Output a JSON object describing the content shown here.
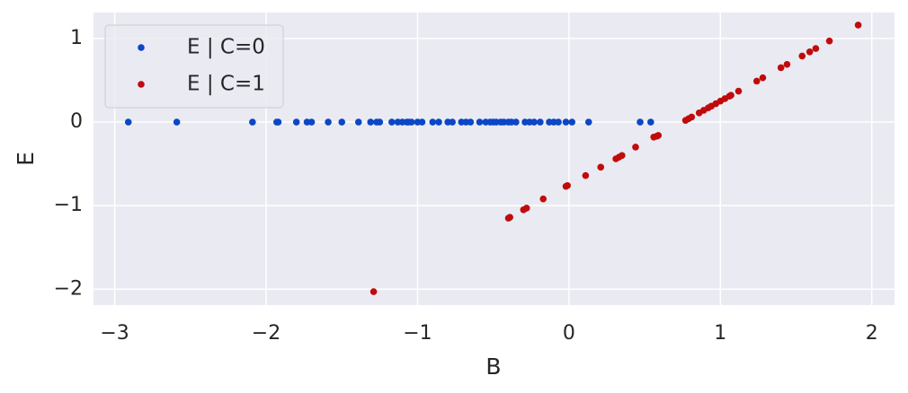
{
  "chart_data": {
    "type": "scatter",
    "xlabel": "B",
    "ylabel": "E",
    "xlim": [
      -3.14,
      2.15
    ],
    "ylim": [
      -2.19,
      1.31
    ],
    "xticks": [
      {
        "value": -3,
        "label": "−3"
      },
      {
        "value": -2,
        "label": "−2"
      },
      {
        "value": -1,
        "label": "−1"
      },
      0,
      1,
      2
    ],
    "yticks": [
      {
        "value": -2,
        "label": "−2"
      },
      {
        "value": -1,
        "label": "−1"
      },
      0,
      1
    ],
    "grid": true,
    "legend": "upper left",
    "series": [
      {
        "name": "E | C=0",
        "color": "#0b47c6",
        "x": [
          -2.91,
          -2.59,
          -2.09,
          -1.93,
          -1.92,
          -1.8,
          -1.73,
          -1.7,
          -1.59,
          -1.5,
          -1.39,
          -1.31,
          -1.27,
          -1.25,
          -1.17,
          -1.13,
          -1.1,
          -1.07,
          -1.06,
          -1.04,
          -1.0,
          -0.97,
          -0.9,
          -0.86,
          -0.8,
          -0.77,
          -0.71,
          -0.68,
          -0.65,
          -0.59,
          -0.55,
          -0.52,
          -0.5,
          -0.48,
          -0.45,
          -0.43,
          -0.4,
          -0.38,
          -0.35,
          -0.29,
          -0.26,
          -0.23,
          -0.19,
          -0.13,
          -0.1,
          -0.07,
          -0.02,
          0.02,
          0.13,
          0.47,
          0.54
        ],
        "y": [
          0,
          0,
          0,
          0,
          0,
          0,
          0,
          0,
          0,
          0,
          0,
          0,
          0,
          0,
          0,
          0,
          0,
          0,
          0,
          0,
          0,
          0,
          0,
          0,
          0,
          0,
          0,
          0,
          0,
          0,
          0,
          0,
          0,
          0,
          0,
          0,
          0,
          0,
          0,
          0,
          0,
          0,
          0,
          0,
          0,
          0,
          0,
          0,
          0,
          0,
          0
        ]
      },
      {
        "name": "E | C=1",
        "color": "#c00b0b",
        "x": [
          -1.29,
          -0.4,
          -0.39,
          -0.3,
          -0.28,
          -0.17,
          -0.02,
          -0.01,
          0.11,
          0.21,
          0.31,
          0.33,
          0.35,
          0.44,
          0.56,
          0.58,
          0.59,
          0.77,
          0.79,
          0.81,
          0.86,
          0.89,
          0.92,
          0.94,
          0.97,
          1.0,
          1.03,
          1.06,
          1.07,
          1.12,
          1.24,
          1.28,
          1.4,
          1.44,
          1.54,
          1.59,
          1.63,
          1.72,
          1.91
        ],
        "y": [
          -2.03,
          -1.15,
          -1.14,
          -1.05,
          -1.03,
          -0.92,
          -0.77,
          -0.76,
          -0.64,
          -0.54,
          -0.44,
          -0.42,
          -0.4,
          -0.3,
          -0.18,
          -0.17,
          -0.16,
          0.02,
          0.04,
          0.06,
          0.11,
          0.14,
          0.17,
          0.19,
          0.22,
          0.25,
          0.28,
          0.31,
          0.32,
          0.37,
          0.49,
          0.53,
          0.65,
          0.69,
          0.79,
          0.84,
          0.88,
          0.97,
          1.16
        ]
      }
    ]
  }
}
